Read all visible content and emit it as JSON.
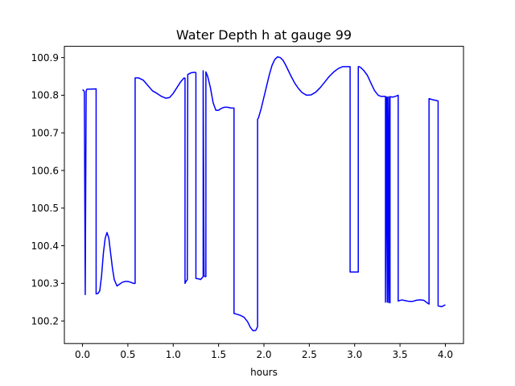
{
  "chart_data": {
    "type": "line",
    "title": "Water Depth h at gauge 99",
    "xlabel": "hours",
    "ylabel": "",
    "xlim": [
      -0.2,
      4.2
    ],
    "ylim": [
      100.14,
      100.93
    ],
    "xticks": [
      0.0,
      0.5,
      1.0,
      1.5,
      2.0,
      2.5,
      3.0,
      3.5,
      4.0
    ],
    "xtick_labels": [
      "0.0",
      "0.5",
      "1.0",
      "1.5",
      "2.0",
      "2.5",
      "3.0",
      "3.5",
      "4.0"
    ],
    "yticks": [
      100.2,
      100.3,
      100.4,
      100.5,
      100.6,
      100.7,
      100.8,
      100.9
    ],
    "ytick_labels": [
      "100.2",
      "100.3",
      "100.4",
      "100.5",
      "100.6",
      "100.7",
      "100.8",
      "100.9"
    ],
    "grid": false,
    "series": [
      {
        "color": "#0000ff",
        "x": [
          0.0,
          0.01,
          0.02,
          0.03,
          0.04,
          0.045,
          0.05,
          0.06,
          0.08,
          0.15,
          0.15,
          0.17,
          0.19,
          0.21,
          0.23,
          0.25,
          0.27,
          0.29,
          0.31,
          0.33,
          0.35,
          0.38,
          0.41,
          0.44,
          0.47,
          0.5,
          0.53,
          0.56,
          0.58,
          0.58,
          0.62,
          0.67,
          0.72,
          0.77,
          0.82,
          0.87,
          0.92,
          0.96,
          1.0,
          1.04,
          1.08,
          1.12,
          1.13,
          1.13,
          1.14,
          1.155,
          1.16,
          1.2,
          1.24,
          1.25,
          1.25,
          1.28,
          1.3,
          1.32,
          1.33,
          1.33,
          1.34,
          1.35,
          1.36,
          1.36,
          1.38,
          1.41,
          1.44,
          1.47,
          1.5,
          1.53,
          1.56,
          1.6,
          1.64,
          1.66,
          1.67,
          1.67,
          1.7,
          1.74,
          1.78,
          1.82,
          1.85,
          1.88,
          1.91,
          1.93,
          1.93,
          1.94,
          1.97,
          2.0,
          2.03,
          2.06,
          2.09,
          2.12,
          2.15,
          2.18,
          2.21,
          2.24,
          2.27,
          2.3,
          2.34,
          2.38,
          2.42,
          2.47,
          2.52,
          2.57,
          2.62,
          2.67,
          2.72,
          2.77,
          2.82,
          2.87,
          2.92,
          2.94,
          2.95,
          2.95,
          3.04,
          3.04,
          3.05,
          3.07,
          3.1,
          3.14,
          3.18,
          3.22,
          3.26,
          3.29,
          3.32,
          3.34,
          3.34,
          3.35,
          3.36,
          3.36,
          3.375,
          3.375,
          3.39,
          3.39,
          3.42,
          3.45,
          3.47,
          3.48,
          3.48,
          3.52,
          3.56,
          3.6,
          3.64,
          3.68,
          3.72,
          3.76,
          3.78,
          3.8,
          3.82,
          3.82,
          3.86,
          3.9,
          3.92,
          3.92,
          3.96,
          4.0
        ],
        "y": [
          100.815,
          100.813,
          100.81,
          100.27,
          100.81,
          100.815,
          100.816,
          100.816,
          100.816,
          100.817,
          100.272,
          100.273,
          100.28,
          100.32,
          100.38,
          100.42,
          100.435,
          100.42,
          100.38,
          100.34,
          100.31,
          100.293,
          100.298,
          100.303,
          100.305,
          100.305,
          100.303,
          100.3,
          100.3,
          100.846,
          100.846,
          100.84,
          100.826,
          100.812,
          100.805,
          100.797,
          100.792,
          100.794,
          100.805,
          100.82,
          100.835,
          100.846,
          100.845,
          100.3,
          100.305,
          100.31,
          100.855,
          100.86,
          100.861,
          100.86,
          100.313,
          100.312,
          100.31,
          100.315,
          100.318,
          100.865,
          100.32,
          100.318,
          100.318,
          100.862,
          100.85,
          100.82,
          100.78,
          100.76,
          100.76,
          100.765,
          100.768,
          100.768,
          100.766,
          100.766,
          100.766,
          100.22,
          100.218,
          100.215,
          100.21,
          100.198,
          100.183,
          100.174,
          100.175,
          100.185,
          100.736,
          100.74,
          100.765,
          100.795,
          100.825,
          100.855,
          100.88,
          100.895,
          100.902,
          100.9,
          100.893,
          100.88,
          100.865,
          100.85,
          100.832,
          100.818,
          100.807,
          100.8,
          100.801,
          100.808,
          100.82,
          100.835,
          100.85,
          100.862,
          100.871,
          100.876,
          100.876,
          100.876,
          100.876,
          100.33,
          100.33,
          100.876,
          100.876,
          100.873,
          100.866,
          100.853,
          100.832,
          100.812,
          100.8,
          100.797,
          100.797,
          100.797,
          100.25,
          100.795,
          100.25,
          100.795,
          100.249,
          100.796,
          100.248,
          100.796,
          100.795,
          100.797,
          100.799,
          100.8,
          100.253,
          100.256,
          100.254,
          100.252,
          100.252,
          100.255,
          100.256,
          100.255,
          100.252,
          100.248,
          100.245,
          100.791,
          100.788,
          100.786,
          100.785,
          100.24,
          100.238,
          100.243
        ]
      }
    ]
  }
}
